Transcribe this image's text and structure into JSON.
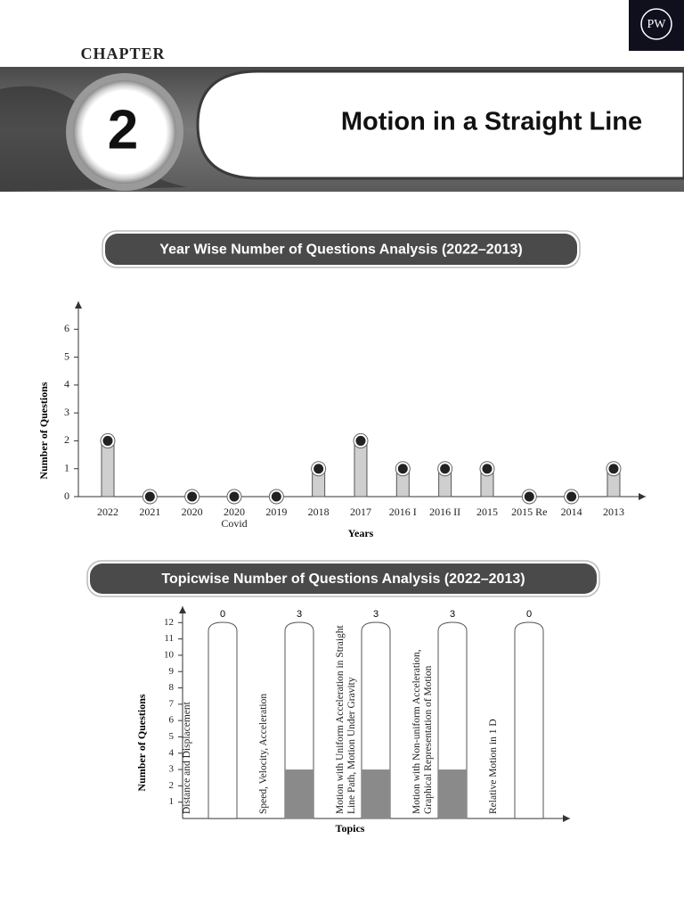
{
  "header": {
    "logo": "PW",
    "chapter_label": "CHAPTER",
    "chapter_number": "2",
    "title": "Motion in a Straight Line"
  },
  "chart_data": [
    {
      "type": "bar",
      "title": "Year Wise Number of Questions Analysis (2022–2013)",
      "x_label": "Years",
      "y_label": "Number of Questions",
      "categories": [
        "2022",
        "2021",
        "2020",
        "2020 Covid",
        "2019",
        "2018",
        "2017",
        "2016 I",
        "2016 II",
        "2015",
        "2015 Re",
        "2014",
        "2013"
      ],
      "values": [
        2,
        0,
        0,
        0,
        0,
        1,
        2,
        1,
        1,
        1,
        0,
        0,
        1
      ],
      "color": "#cfcfcf",
      "ylim": [
        0,
        7
      ],
      "yticks": [
        0,
        1,
        2,
        3,
        4,
        5,
        6
      ]
    },
    {
      "type": "bar",
      "title": "Topicwise Number of Questions Analysis (2022–2013)",
      "x_label": "Topics",
      "y_label": "Number of Questions",
      "categories": [
        "Distance and Displacement",
        "Speed, Velocity, Acceleration",
        "Motion with Uniform Acceleration in Straight Line Path, Motion Under Gravity",
        "Motion with Non-uniform Acceleration, Graphical Representation of Motion",
        "Relative Motion in 1 D"
      ],
      "values": [
        0,
        3,
        3,
        3,
        0
      ],
      "color": "#8a8a8a",
      "ylim": [
        0,
        13
      ],
      "yticks": [
        1,
        2,
        3,
        4,
        5,
        6,
        7,
        8,
        9,
        10,
        11,
        12
      ],
      "show_values": true
    }
  ]
}
